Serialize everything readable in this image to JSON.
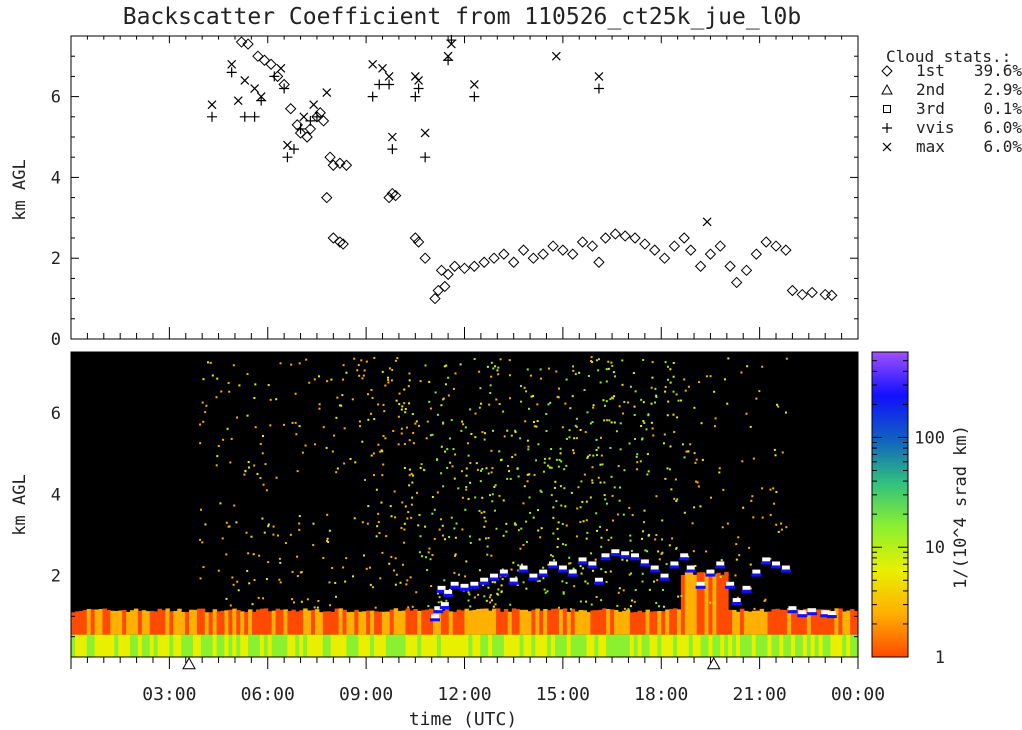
{
  "title": "Backscatter Coefficient from 110526_ct25k_jue_l0b",
  "chart_data": [
    {
      "type": "scatter",
      "panel": "cloud-base-heights",
      "ylabel": "km AGL",
      "ylim": [
        0,
        7.5
      ],
      "yticks": [
        "0",
        "2",
        "4",
        "6"
      ],
      "xlim_hours": [
        0,
        24
      ],
      "legend": {
        "placement": "right",
        "title": "Cloud stats.:",
        "entries": [
          {
            "symbol": "diamond",
            "name": "1st",
            "value": "39.6%"
          },
          {
            "symbol": "triangle",
            "name": "2nd",
            "value": "2.9%"
          },
          {
            "symbol": "square",
            "name": "3rd",
            "value": "0.1%"
          },
          {
            "symbol": "plus",
            "name": "vvis",
            "value": "6.0%"
          },
          {
            "symbol": "cross",
            "name": "max",
            "value": "6.0%"
          }
        ]
      },
      "series": [
        {
          "name": "1st",
          "symbol": "diamond",
          "points": [
            [
              5.2,
              7.35
            ],
            [
              5.4,
              7.3
            ],
            [
              5.7,
              7.0
            ],
            [
              5.9,
              6.9
            ],
            [
              6.1,
              6.8
            ],
            [
              6.3,
              6.5
            ],
            [
              6.5,
              6.3
            ],
            [
              6.7,
              5.7
            ],
            [
              6.9,
              5.3
            ],
            [
              7.0,
              5.1
            ],
            [
              7.2,
              5.0
            ],
            [
              7.3,
              5.2
            ],
            [
              7.5,
              5.5
            ],
            [
              7.6,
              5.6
            ],
            [
              7.7,
              5.4
            ],
            [
              7.9,
              4.5
            ],
            [
              8.0,
              4.3
            ],
            [
              8.2,
              4.35
            ],
            [
              8.4,
              4.3
            ],
            [
              7.8,
              3.5
            ],
            [
              8.0,
              2.5
            ],
            [
              8.2,
              2.4
            ],
            [
              8.3,
              2.35
            ],
            [
              9.7,
              3.5
            ],
            [
              9.8,
              3.6
            ],
            [
              9.9,
              3.55
            ],
            [
              10.5,
              2.5
            ],
            [
              10.6,
              2.4
            ],
            [
              10.8,
              2.0
            ],
            [
              11.1,
              1.0
            ],
            [
              11.2,
              1.2
            ],
            [
              11.4,
              1.3
            ],
            [
              11.3,
              1.7
            ],
            [
              11.5,
              1.6
            ],
            [
              11.7,
              1.8
            ],
            [
              12.0,
              1.75
            ],
            [
              12.3,
              1.8
            ],
            [
              12.6,
              1.9
            ],
            [
              12.9,
              2.0
            ],
            [
              13.2,
              2.1
            ],
            [
              13.5,
              1.9
            ],
            [
              13.8,
              2.2
            ],
            [
              14.1,
              2.0
            ],
            [
              14.4,
              2.1
            ],
            [
              14.7,
              2.3
            ],
            [
              15.0,
              2.2
            ],
            [
              15.3,
              2.1
            ],
            [
              15.6,
              2.4
            ],
            [
              15.9,
              2.3
            ],
            [
              16.1,
              1.9
            ],
            [
              16.3,
              2.5
            ],
            [
              16.6,
              2.6
            ],
            [
              16.9,
              2.55
            ],
            [
              17.2,
              2.5
            ],
            [
              17.5,
              2.35
            ],
            [
              17.8,
              2.2
            ],
            [
              18.1,
              2.0
            ],
            [
              18.4,
              2.3
            ],
            [
              18.7,
              2.5
            ],
            [
              18.9,
              2.2
            ],
            [
              19.2,
              1.8
            ],
            [
              19.5,
              2.1
            ],
            [
              19.8,
              2.3
            ],
            [
              20.1,
              1.8
            ],
            [
              20.3,
              1.4
            ],
            [
              20.6,
              1.7
            ],
            [
              20.9,
              2.1
            ],
            [
              21.2,
              2.4
            ],
            [
              21.5,
              2.3
            ],
            [
              21.8,
              2.2
            ],
            [
              22.0,
              1.2
            ],
            [
              22.3,
              1.1
            ],
            [
              22.6,
              1.15
            ],
            [
              23.0,
              1.1
            ],
            [
              23.2,
              1.08
            ]
          ]
        },
        {
          "name": "vvis",
          "symbol": "plus",
          "points": [
            [
              4.3,
              5.5
            ],
            [
              4.9,
              6.6
            ],
            [
              5.3,
              5.5
            ],
            [
              5.6,
              5.5
            ],
            [
              5.8,
              5.9
            ],
            [
              6.2,
              6.5
            ],
            [
              6.5,
              6.2
            ],
            [
              6.6,
              4.5
            ],
            [
              6.8,
              4.7
            ],
            [
              7.0,
              5.2
            ],
            [
              7.3,
              5.4
            ],
            [
              7.5,
              5.5
            ],
            [
              9.2,
              6.0
            ],
            [
              9.4,
              6.3
            ],
            [
              9.7,
              6.3
            ],
            [
              9.8,
              4.7
            ],
            [
              10.5,
              6.0
            ],
            [
              10.6,
              6.2
            ],
            [
              10.8,
              4.5
            ],
            [
              11.5,
              6.9
            ],
            [
              11.6,
              7.4
            ],
            [
              12.3,
              6.0
            ],
            [
              16.1,
              6.2
            ]
          ]
        },
        {
          "name": "max",
          "symbol": "cross",
          "points": [
            [
              4.3,
              5.8
            ],
            [
              4.9,
              6.8
            ],
            [
              5.1,
              5.9
            ],
            [
              5.3,
              6.4
            ],
            [
              5.6,
              6.2
            ],
            [
              5.8,
              6.0
            ],
            [
              6.4,
              6.7
            ],
            [
              6.6,
              4.8
            ],
            [
              7.1,
              5.5
            ],
            [
              7.4,
              5.8
            ],
            [
              7.8,
              6.1
            ],
            [
              9.2,
              6.8
            ],
            [
              9.5,
              6.7
            ],
            [
              9.7,
              6.5
            ],
            [
              9.8,
              5.0
            ],
            [
              10.5,
              6.5
            ],
            [
              10.6,
              6.4
            ],
            [
              10.8,
              5.1
            ],
            [
              11.5,
              7.0
            ],
            [
              11.6,
              7.3
            ],
            [
              12.3,
              6.3
            ],
            [
              14.8,
              7.0
            ],
            [
              16.1,
              6.5
            ],
            [
              19.4,
              2.9
            ]
          ]
        }
      ]
    },
    {
      "type": "heatmap",
      "panel": "backscatter",
      "ylabel": "km AGL",
      "ylim": [
        0,
        7.5
      ],
      "yticks": [
        "2",
        "4",
        "6"
      ],
      "xlabel": "time (UTC)",
      "xlim_hours": [
        0,
        24
      ],
      "xticks": [
        "03:00",
        "06:00",
        "09:00",
        "12:00",
        "15:00",
        "18:00",
        "21:00",
        "00:00"
      ],
      "colorbar": {
        "label": "1/(10^4 srad km)",
        "scale": "log",
        "ticks": [
          "1",
          "10",
          "100"
        ],
        "range": [
          1,
          600
        ],
        "colors": [
          "#ff4a00",
          "#ffb000",
          "#e8f000",
          "#8af030",
          "#30c080",
          "#1060c0",
          "#1010ff",
          "#a050ff"
        ]
      },
      "background_color": "#000000",
      "day_markers_hours": [
        3.6,
        19.6
      ]
    }
  ]
}
